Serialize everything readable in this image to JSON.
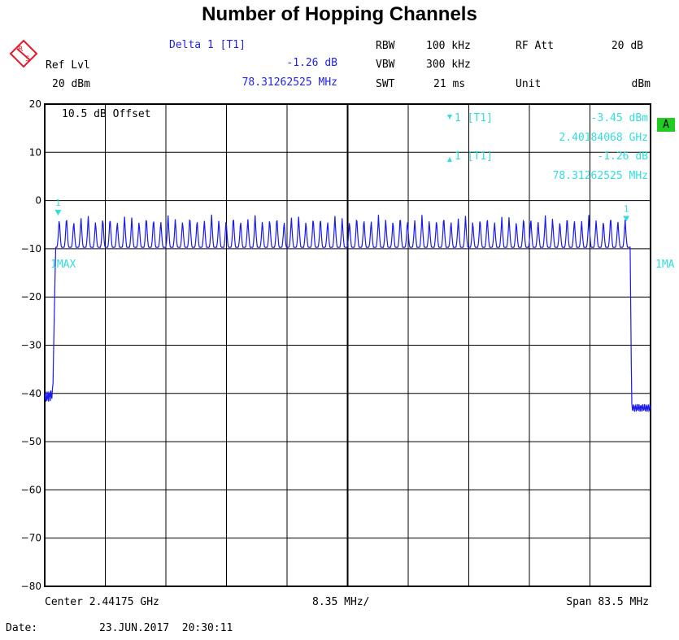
{
  "title": "Number of Hopping Channels",
  "logo": {
    "name": "rohde-schwarz-logo",
    "letters": "RS"
  },
  "header": {
    "ref_lvl_label": "Ref Lvl",
    "ref_lvl_value": "20 dBm",
    "delta_label": "Delta 1 [T1]",
    "delta_db": "-1.26 dB",
    "delta_freq": "78.31262525 MHz",
    "rbw_label": "RBW",
    "rbw_value": "100 kHz",
    "vbw_label": "VBW",
    "vbw_value": "300 kHz",
    "swt_label": "SWT",
    "swt_value": "21 ms",
    "rfatt_label": "RF Att",
    "rfatt_value": "20 dB",
    "unit_label": "Unit",
    "unit_value": "dBm"
  },
  "overlay": {
    "offset": "10.5 dB Offset",
    "m1_label": "1 [T1]",
    "m1_level": "-3.45 dBm",
    "m1_freq": "2.40184068 GHz",
    "d1_label": "1 [T1]",
    "d1_level": "-1.26 dB",
    "d1_freq": "78.31262525 MHz",
    "trace_left": "1MAX",
    "trace_right": "1MA",
    "a_badge": "A"
  },
  "footer": {
    "center": "Center 2.44175 GHz",
    "div": "8.35 MHz/",
    "span": "Span 83.5 MHz",
    "date_label": "Date:",
    "date_value": "23.JUN.2017  20:30:11"
  },
  "colors": {
    "trace": "#1a1aee",
    "marker": "#33dddd",
    "badge": "#22cc22",
    "logo": "#e8192c",
    "grid": "#000000"
  },
  "chart_data": {
    "type": "line",
    "title": "Number of Hopping Channels",
    "ylabel": "dBm",
    "ylim": [
      -80,
      20
    ],
    "yticks": [
      20,
      10,
      0,
      -10,
      -20,
      -30,
      -40,
      -50,
      -60,
      -70,
      -80
    ],
    "xlim": [
      2400.0,
      2483.5
    ],
    "x_unit": "MHz",
    "grid": true,
    "channels": 79,
    "channel_start_mhz": 2402,
    "channel_spacing_mhz": 1,
    "peak_level_dbm": -3.5,
    "valley_level_dbm": -9.7,
    "noise_floor_dbm": -41,
    "markers": [
      {
        "name": "1",
        "x": 2401.84068,
        "y": -3.45
      },
      {
        "name": "D1",
        "x": 2480.15331,
        "y": -4.71
      }
    ]
  }
}
